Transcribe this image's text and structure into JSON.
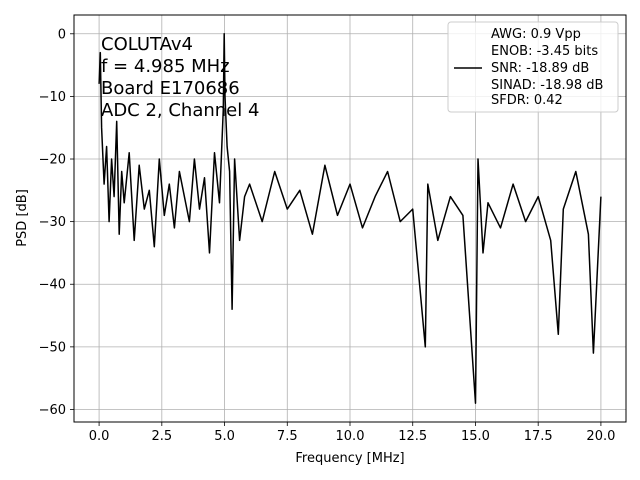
{
  "chart_data": {
    "type": "line",
    "xlabel": "Frequency [MHz]",
    "ylabel": "PSD [dB]",
    "xlim": [
      -1.0,
      21.0
    ],
    "ylim": [
      -62,
      3
    ],
    "grid": true,
    "x_ticks": [
      0.0,
      2.5,
      5.0,
      7.5,
      10.0,
      12.5,
      15.0,
      17.5,
      20.0
    ],
    "x_tick_labels": [
      "0.0",
      "2.5",
      "5.0",
      "7.5",
      "10.0",
      "12.5",
      "15.0",
      "17.5",
      "20.0"
    ],
    "y_ticks": [
      0,
      -10,
      -20,
      -30,
      -40,
      -50,
      -60
    ],
    "y_tick_labels": [
      "0",
      "−10",
      "−20",
      "−30",
      "−40",
      "−50",
      "−60"
    ],
    "annotation_lines": [
      "COLUTAv4",
      "f = 4.985 MHz",
      "Board E170686",
      "ADC 2, Channel 4"
    ],
    "legend_lines": [
      "AWG: 0.9 Vpp",
      "ENOB: -3.45 bits",
      "SNR: -18.89 dB",
      "SINAD: -18.98 dB",
      "SFDR: 0.42"
    ],
    "legend_position": "upper-right",
    "series": [
      {
        "color": "#000000",
        "x": [
          0.0,
          0.05,
          0.1,
          0.2,
          0.3,
          0.4,
          0.5,
          0.6,
          0.7,
          0.8,
          0.9,
          1.0,
          1.2,
          1.4,
          1.6,
          1.8,
          2.0,
          2.2,
          2.4,
          2.6,
          2.8,
          3.0,
          3.2,
          3.4,
          3.6,
          3.8,
          4.0,
          4.2,
          4.4,
          4.6,
          4.8,
          4.95,
          4.985,
          5.02,
          5.1,
          5.2,
          5.3,
          5.4,
          5.6,
          5.8,
          6.0,
          6.5,
          7.0,
          7.5,
          8.0,
          8.5,
          9.0,
          9.5,
          10.0,
          10.5,
          11.0,
          11.5,
          12.0,
          12.5,
          13.0,
          13.1,
          13.5,
          14.0,
          14.5,
          15.0,
          15.1,
          15.3,
          15.5,
          16.0,
          16.5,
          17.0,
          17.5,
          18.0,
          18.3,
          18.5,
          19.0,
          19.5,
          19.7,
          20.0
        ],
        "values": [
          -8,
          -3,
          -15,
          -24,
          -18,
          -30,
          -20,
          -26,
          -14,
          -32,
          -22,
          -27,
          -19,
          -33,
          -21,
          -28,
          -25,
          -34,
          -20,
          -29,
          -24,
          -31,
          -22,
          -26,
          -30,
          -20,
          -28,
          -23,
          -35,
          -19,
          -27,
          -12,
          0,
          -10,
          -18,
          -22,
          -44,
          -20,
          -33,
          -26,
          -24,
          -30,
          -22,
          -28,
          -25,
          -32,
          -21,
          -29,
          -24,
          -31,
          -26,
          -22,
          -30,
          -28,
          -50,
          -24,
          -33,
          -26,
          -29,
          -59,
          -20,
          -35,
          -27,
          -31,
          -24,
          -30,
          -26,
          -33,
          -48,
          -28,
          -22,
          -32,
          -51,
          -26
        ]
      }
    ]
  }
}
